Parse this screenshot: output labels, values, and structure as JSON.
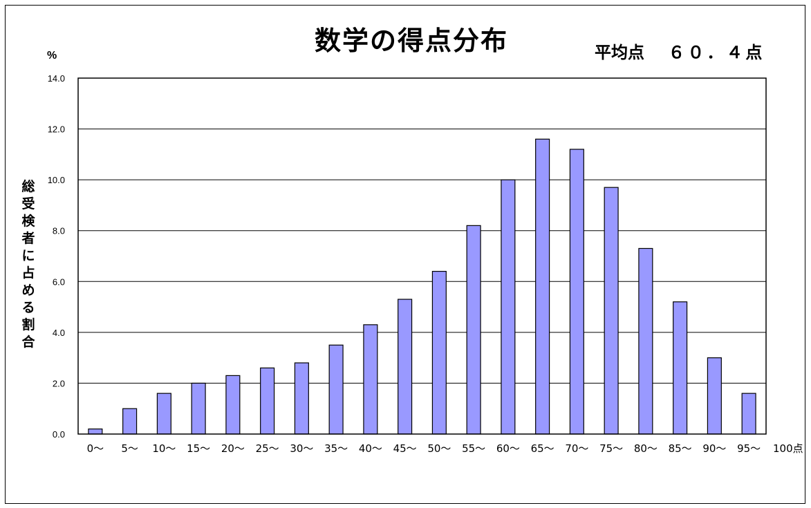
{
  "chart_data": {
    "type": "bar",
    "title": "数学の得点分布",
    "subtitle_label": "平均点",
    "subtitle_value": "６０．４点",
    "ylabel": "総受検者に占める割合",
    "yunit": "%",
    "xunit": "100点",
    "ylim": [
      0,
      14
    ],
    "yticks": [
      "0.0",
      "2.0",
      "4.0",
      "6.0",
      "8.0",
      "10.0",
      "12.0",
      "14.0"
    ],
    "grid": true,
    "categories": [
      "0～",
      "5～",
      "10～",
      "15～",
      "20～",
      "25～",
      "30～",
      "35～",
      "40～",
      "45～",
      "50～",
      "55～",
      "60～",
      "65～",
      "70～",
      "75～",
      "80～",
      "85～",
      "90～",
      "95～"
    ],
    "values": [
      0.2,
      1.0,
      1.6,
      2.0,
      2.3,
      2.6,
      2.8,
      3.5,
      4.3,
      5.3,
      6.4,
      8.2,
      10.0,
      11.6,
      11.2,
      9.7,
      7.3,
      5.2,
      3.0,
      1.6
    ],
    "bar_color": "#9999ff"
  }
}
